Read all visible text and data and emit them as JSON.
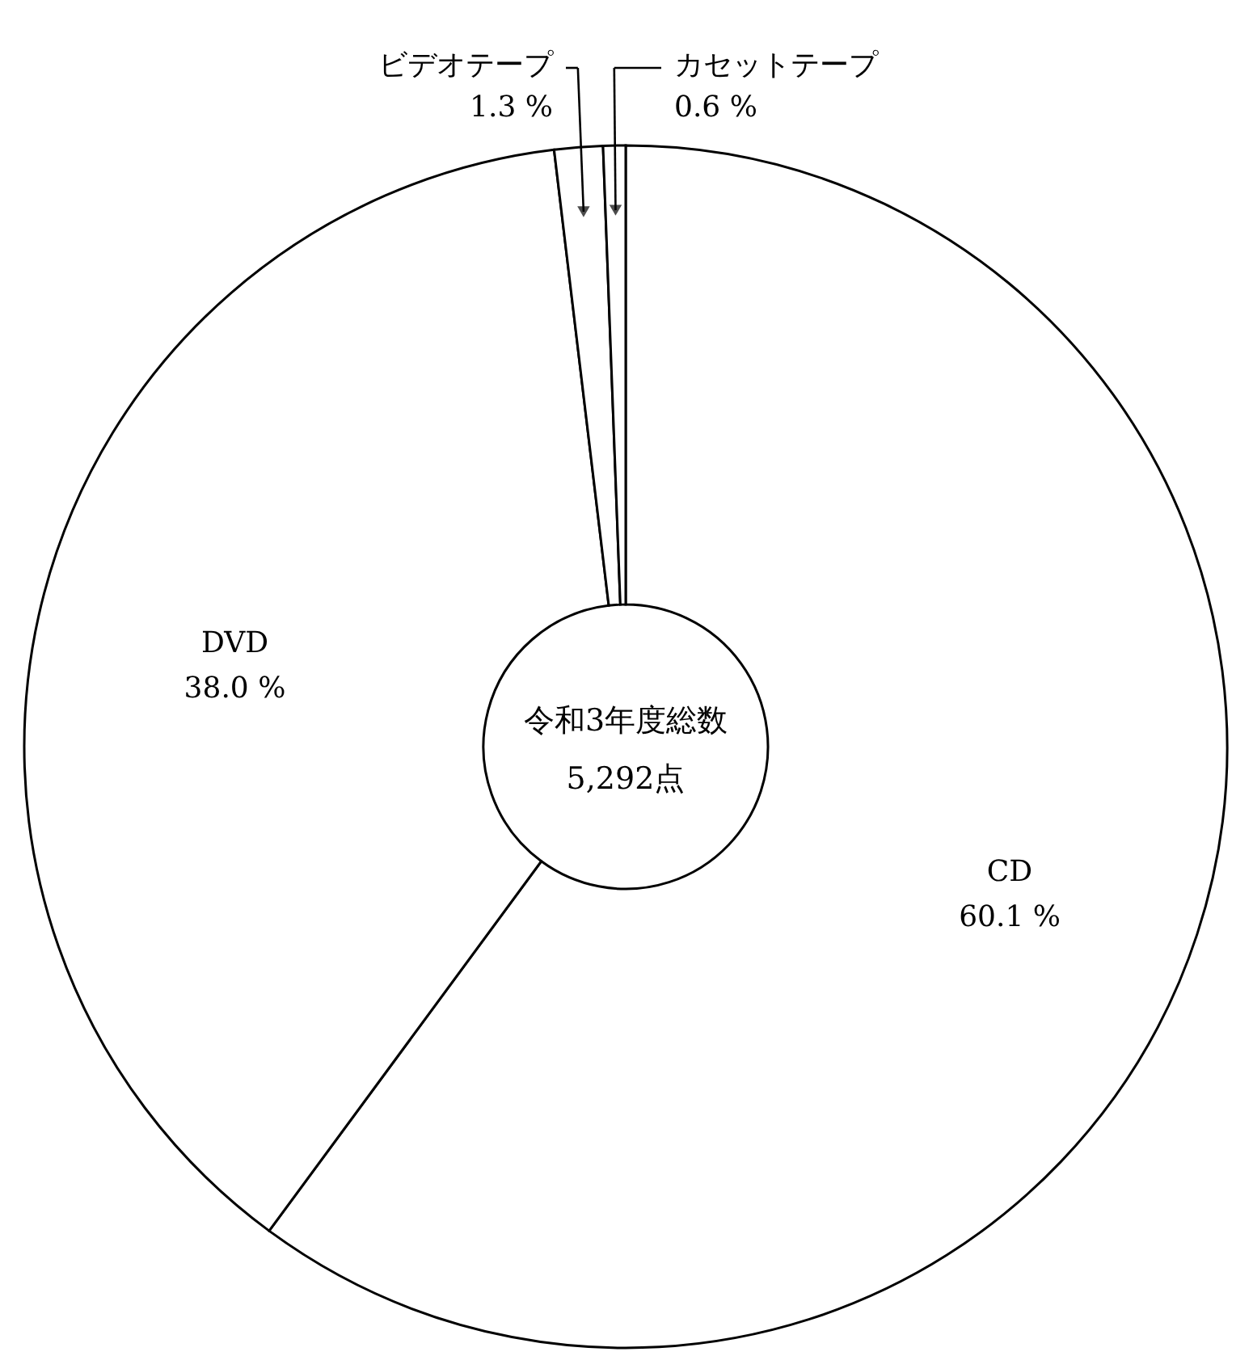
{
  "chart_data": {
    "type": "donut",
    "categories": [
      "CD",
      "DVD",
      "ビデオテープ",
      "カセットテープ"
    ],
    "values": [
      60.1,
      38.0,
      1.3,
      0.6
    ],
    "colors": [
      "#ffffff",
      "#ffffff",
      "#ffffff",
      "#ffffff"
    ],
    "value_labels": [
      "60.1 %",
      "38.0 %",
      "1.3 %",
      "0.6 %"
    ],
    "annotations": [
      "令和3年度総数",
      "5,292点"
    ]
  }
}
